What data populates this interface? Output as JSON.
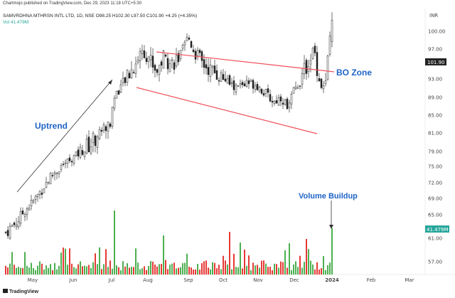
{
  "header": {
    "published": "Chartmojo published on TradingView.com, Dec 29, 2023 11:18 UTC+5:30",
    "symbol_line": "SAMVRDHNA MTHRSN INTL LTD, 1D, NSE  O98.25 H102.30 L97.50 C101.90 +4.25 (+4.35%)",
    "volume_line": "Vol  41.479M"
  },
  "footer": {
    "logo_text": "TradingView"
  },
  "colors": {
    "up": "#26a69a",
    "down": "#ef5350",
    "vol_up": "#4caf50",
    "vol_down": "#e53935",
    "trendline": "#f0505a",
    "annotation": "#1e63c7",
    "last_price_bg": "#222222",
    "last_vol_bg": "#26a69a"
  },
  "chart_data": {
    "type": "candlestick",
    "currency": "INR",
    "price_axis_ticks": [
      "100.00",
      "97.00",
      "93.00",
      "89.00",
      "85.00",
      "81.00",
      "79.00",
      "75.00",
      "72.00",
      "69.00",
      "65.00",
      "61.00",
      "57.00"
    ],
    "last_price_label": "101.90",
    "last_volume_label": "41.479M",
    "x_ticks": [
      "May",
      "Jun",
      "Jul",
      "Aug",
      "Sep",
      "Oct",
      "Nov",
      "Dec",
      "2024",
      "Feb",
      "Mar"
    ],
    "annotations": [
      "Uptrend",
      "BO Zone",
      "Volume Buildup"
    ],
    "daily_ohlc_approx": [
      {
        "period": "late Apr",
        "low": 62,
        "high": 66
      },
      {
        "period": "May",
        "low": 64,
        "high": 73
      },
      {
        "period": "Jun",
        "low": 72,
        "high": 80
      },
      {
        "period": "early Jul",
        "low": 79,
        "high": 89
      },
      {
        "period": "mid Jul",
        "low": 84,
        "high": 96
      },
      {
        "period": "Aug",
        "low": 92,
        "high": 100
      },
      {
        "period": "Sep",
        "low": 91,
        "high": 100.5
      },
      {
        "period": "Oct",
        "low": 88,
        "high": 95
      },
      {
        "period": "Nov",
        "low": 86,
        "high": 93
      },
      {
        "period": "Dec",
        "low": 89,
        "high": 98
      },
      {
        "period": "Dec 29",
        "open": 98.25,
        "high": 102.3,
        "low": 97.5,
        "close": 101.9
      }
    ],
    "volume_note": "Last bar volume spike 41.479M"
  }
}
